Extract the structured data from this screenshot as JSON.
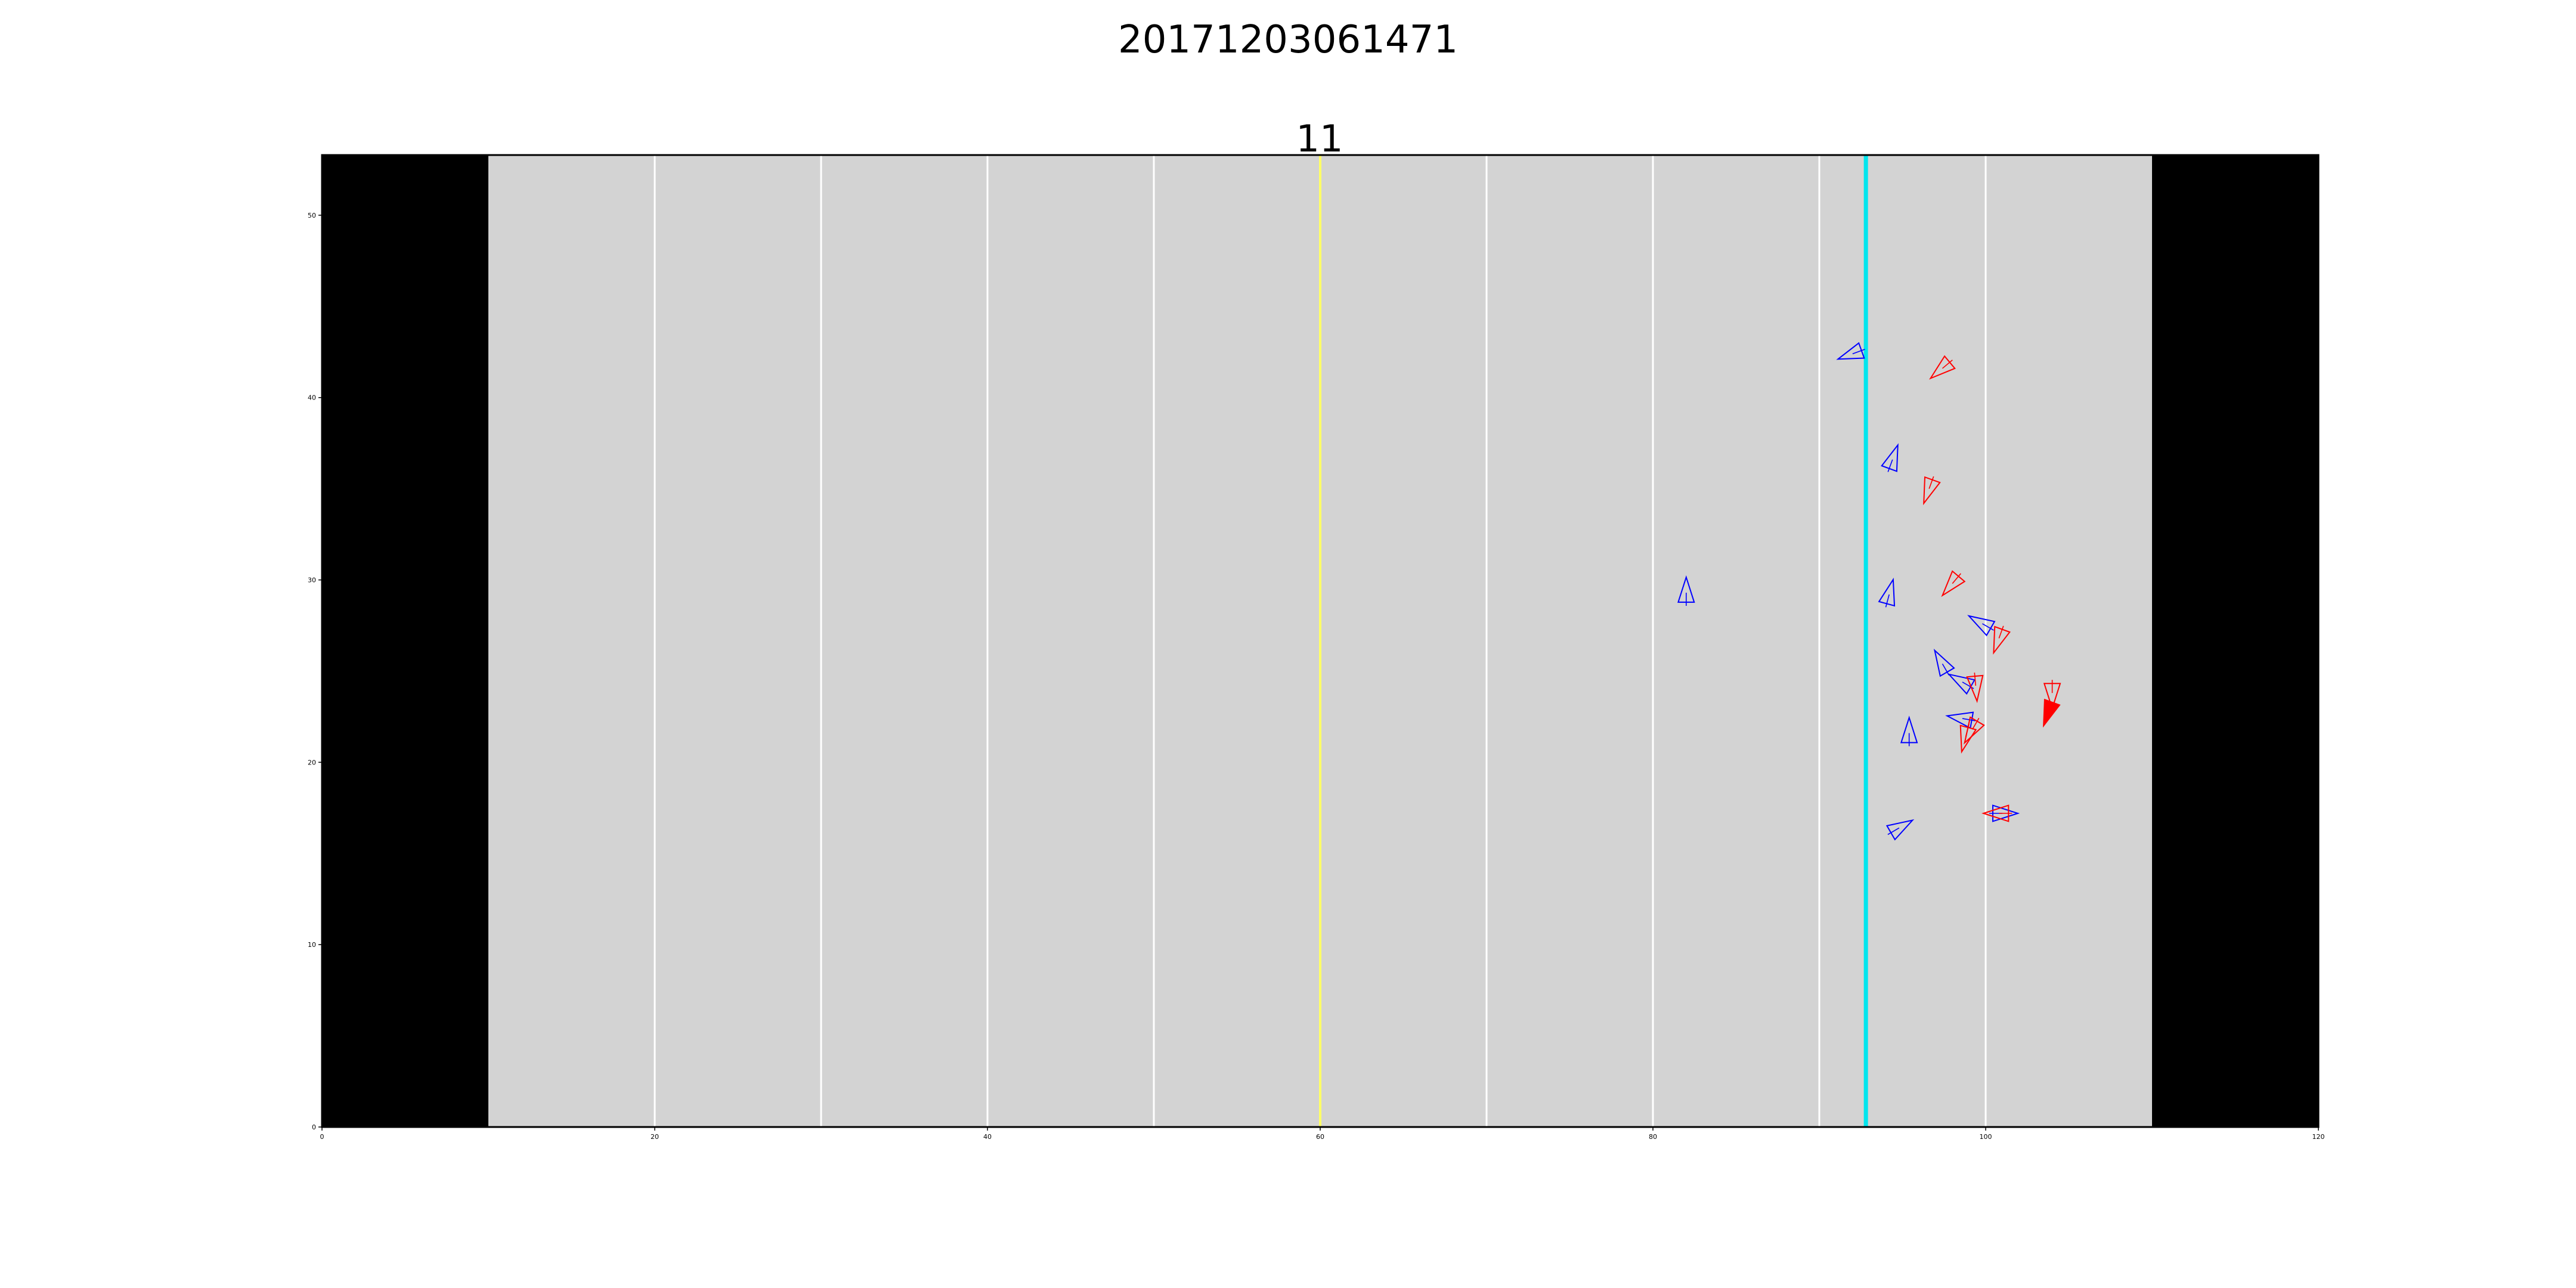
{
  "figure": {
    "suptitle": "20171203061471"
  },
  "chart_data": {
    "type": "scatter",
    "title": "11",
    "xlabel": "",
    "ylabel": "",
    "xlim": [
      0,
      120
    ],
    "ylim": [
      0,
      53.3
    ],
    "x_ticks": [
      0,
      20,
      40,
      60,
      80,
      100,
      120
    ],
    "y_ticks": [
      0,
      10,
      20,
      30,
      40,
      50
    ],
    "grid": false,
    "colors": {
      "field": "#d3d3d3",
      "endzone": "#000000",
      "yard_line": "#ffffff",
      "first_down_line": "#ffff66",
      "line_of_scrimmage": "#00e5ee",
      "offense": "#0000ff",
      "defense": "#ff0000",
      "ball_carrier": "#ff0000",
      "axis": "#000000"
    },
    "endzones": [
      [
        0,
        10
      ],
      [
        110,
        120
      ]
    ],
    "yard_lines": [
      20,
      30,
      40,
      50,
      70,
      80,
      90,
      100
    ],
    "first_down_line_x": 60,
    "line_of_scrimmage_x": 92.8,
    "series": [
      {
        "team": "blue",
        "points": [
          {
            "x": 92.0,
            "y": 42.4,
            "dir": 250
          },
          {
            "x": 94.4,
            "y": 36.6,
            "dir": 20
          },
          {
            "x": 82.0,
            "y": 29.3,
            "dir": 0
          },
          {
            "x": 94.2,
            "y": 29.2,
            "dir": 15
          },
          {
            "x": 99.8,
            "y": 27.6,
            "dir": 300
          },
          {
            "x": 97.4,
            "y": 25.4,
            "dir": 330
          },
          {
            "x": 98.6,
            "y": 24.4,
            "dir": 300
          },
          {
            "x": 98.6,
            "y": 22.4,
            "dir": 280
          },
          {
            "x": 95.4,
            "y": 21.6,
            "dir": 0
          },
          {
            "x": 101.0,
            "y": 17.2,
            "dir": 90
          },
          {
            "x": 94.8,
            "y": 16.4,
            "dir": 60
          }
        ]
      },
      {
        "team": "red",
        "points": [
          {
            "x": 97.4,
            "y": 41.6,
            "dir": 230
          },
          {
            "x": 96.6,
            "y": 35.0,
            "dir": 200
          },
          {
            "x": 98.0,
            "y": 29.8,
            "dir": 220
          },
          {
            "x": 100.8,
            "y": 26.8,
            "dir": 200
          },
          {
            "x": 99.4,
            "y": 24.2,
            "dir": 175
          },
          {
            "x": 104.0,
            "y": 23.8,
            "dir": 180
          },
          {
            "x": 99.2,
            "y": 21.8,
            "dir": 210
          },
          {
            "x": 98.8,
            "y": 21.4,
            "dir": 195
          },
          {
            "x": 100.8,
            "y": 17.2,
            "dir": 270
          }
        ]
      },
      {
        "team": "ball",
        "points": [
          {
            "x": 103.8,
            "y": 22.8,
            "dir": 200,
            "filled": true
          }
        ]
      }
    ]
  }
}
